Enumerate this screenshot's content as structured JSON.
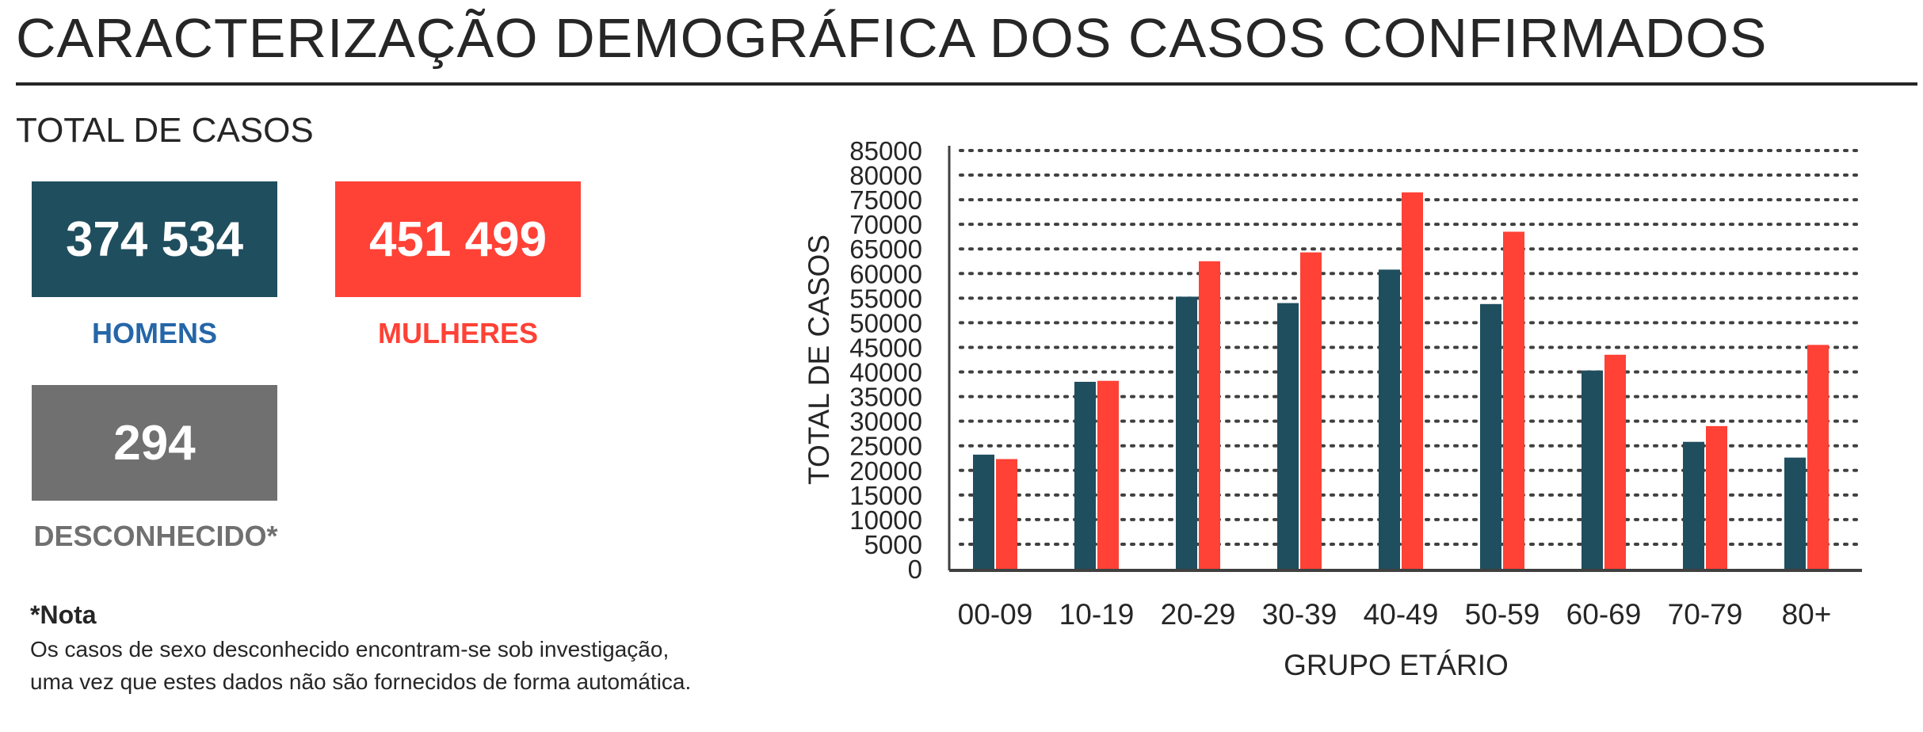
{
  "header": {
    "title": "CARACTERIZAÇÃO DEMOGRÁFICA DOS CASOS CONFIRMADOS"
  },
  "totals": {
    "section_title": "TOTAL DE CASOS",
    "men": {
      "value": "374 534",
      "label": "HOMENS"
    },
    "women": {
      "value": "451 499",
      "label": "MULHERES"
    },
    "unknown": {
      "value": "294",
      "label": "DESCONHECIDO*"
    }
  },
  "note": {
    "title": "*Nota",
    "line1": "Os casos de sexo desconhecido encontram-se sob investigação,",
    "line2": "uma vez que estes dados não são fornecidos de forma automática."
  },
  "colors": {
    "men": "#1f4e5f",
    "women": "#ff4136",
    "unknown": "#707070",
    "men_label": "#2566a8",
    "women_label": "#ff4136",
    "unknown_label": "#707070",
    "text": "#262626"
  },
  "chart_data": {
    "type": "bar",
    "xlabel": "GRUPO ETÁRIO",
    "ylabel": "TOTAL DE CASOS",
    "ylim": [
      0,
      85000
    ],
    "yticks": [
      0,
      5000,
      10000,
      15000,
      20000,
      25000,
      30000,
      35000,
      40000,
      45000,
      50000,
      55000,
      60000,
      65000,
      70000,
      75000,
      80000,
      85000
    ],
    "grid": true,
    "categories": [
      "00-09",
      "10-19",
      "20-29",
      "30-39",
      "40-49",
      "50-59",
      "60-69",
      "70-79",
      "80+"
    ],
    "series": [
      {
        "key": "men",
        "values": [
          23200,
          38000,
          55300,
          54000,
          60800,
          53800,
          40300,
          25800,
          22600
        ]
      },
      {
        "key": "women",
        "values": [
          22300,
          38200,
          62500,
          64300,
          76500,
          68500,
          43500,
          29000,
          45500
        ]
      }
    ]
  }
}
